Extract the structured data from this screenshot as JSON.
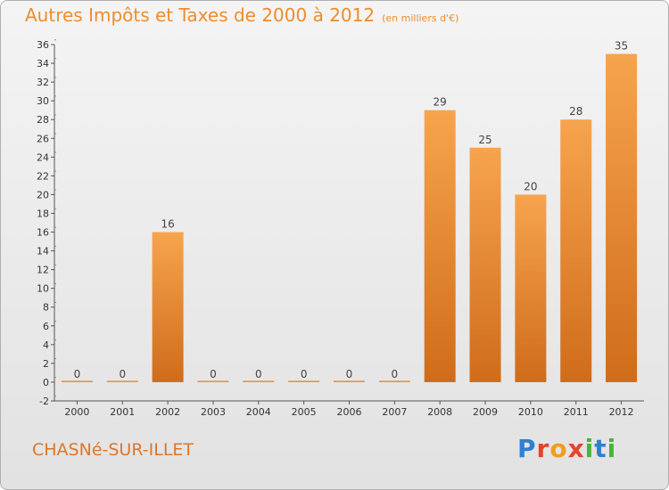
{
  "title": "Autres Impôts et Taxes de 2000 à 2012",
  "subtitle": "(en milliers d'€)",
  "commune": "CHASNé-SUR-ILLET",
  "logo_text": "Proxiti",
  "colors": {
    "accent": "#ee8c2c",
    "bar_top": "#f7a44e",
    "bar_bottom": "#cf6c1a",
    "logo": [
      "#2f7fd4",
      "#e2442e",
      "#f29d1c",
      "#4ab33c"
    ]
  },
  "chart_data": {
    "type": "bar",
    "title": "Autres Impôts et Taxes de 2000 à 2012",
    "subtitle": "(en milliers d'€)",
    "xlabel": "",
    "ylabel": "",
    "categories": [
      "2000",
      "2001",
      "2002",
      "2003",
      "2004",
      "2005",
      "2006",
      "2007",
      "2008",
      "2009",
      "2010",
      "2011",
      "2012"
    ],
    "values": [
      0,
      0,
      16,
      0,
      0,
      0,
      0,
      0,
      29,
      25,
      20,
      28,
      35
    ],
    "data_labels": [
      "0",
      "0",
      "16",
      "0",
      "0",
      "0",
      "0",
      "0",
      "29",
      "25",
      "20",
      "28",
      "35"
    ],
    "ylim": [
      -2,
      36
    ],
    "yticks": [
      -2,
      0,
      2,
      4,
      6,
      8,
      10,
      12,
      14,
      16,
      18,
      20,
      22,
      24,
      26,
      28,
      30,
      32,
      34,
      36
    ],
    "grid": false,
    "legend": "none"
  }
}
